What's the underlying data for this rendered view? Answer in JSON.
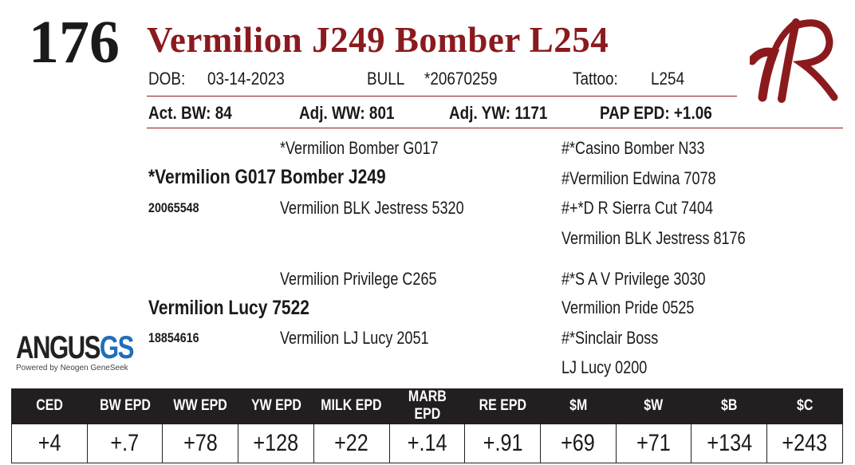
{
  "lot_number": "176",
  "animal_name": "Vermilion J249 Bomber L254",
  "info_row1": {
    "dob_label": "DOB:",
    "dob_value": "03-14-2023",
    "sex": "BULL",
    "registration": "*20670259",
    "tattoo_label": "Tattoo:",
    "tattoo_value": "L254"
  },
  "info_row2": {
    "act_bw": "Act. BW: 84",
    "adj_ww": "Adj. WW: 801",
    "adj_yw": "Adj. YW: 1171",
    "pap_epd": "PAP EPD: +1.06"
  },
  "logo_text": "VR",
  "pedigree": {
    "sire": {
      "name": "*Vermilion G017 Bomber J249",
      "registration": "20065548",
      "sire": "*Vermilion Bomber G017",
      "dam": "Vermilion BLK Jestress 5320",
      "sire_sire": "#*Casino Bomber N33",
      "sire_dam": "#Vermilion Edwina 7078",
      "dam_sire": "#+*D R Sierra Cut 7404",
      "dam_dam": "Vermilion BLK Jestress 8176"
    },
    "dam": {
      "name": "Vermilion Lucy 7522",
      "registration": "18854616",
      "sire": "Vermilion Privilege C265",
      "dam": "Vermilion LJ Lucy 2051",
      "sire_sire": "#*S A V Privilege 3030",
      "sire_dam": "Vermilion Pride 0525",
      "dam_sire": "#*Sinclair Boss",
      "dam_dam": "LJ Lucy 0200"
    }
  },
  "angus_gs": {
    "main": "ANGUS",
    "gs": "GS",
    "tagline": "Powered by Neogen GeneSeek"
  },
  "epd_table": {
    "headers": [
      "CED",
      "BW EPD",
      "WW EPD",
      "YW EPD",
      "MILK EPD",
      "MARB EPD",
      "RE EPD",
      "$M",
      "$W",
      "$B",
      "$C"
    ],
    "values": [
      "+4",
      "+.7",
      "+78",
      "+128",
      "+22",
      "+.14",
      "+.91",
      "+69",
      "+71",
      "+134",
      "+243"
    ]
  },
  "colors": {
    "accent": "#8b1a1e",
    "header_bg": "#231f20",
    "gs_blue": "#1f6fb8"
  }
}
